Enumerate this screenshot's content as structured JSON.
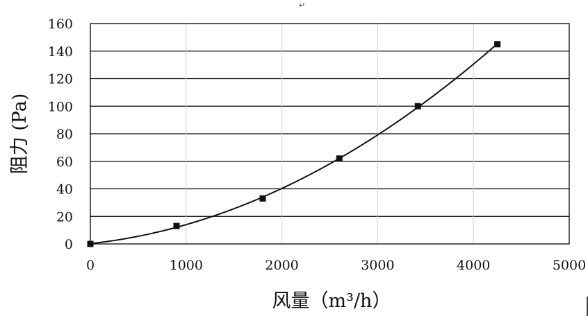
{
  "chart_data": {
    "type": "scatter",
    "xlabel": "风量（m³/h）",
    "ylabel": "阻力 (Pa)",
    "xlim": [
      0,
      5000
    ],
    "ylim": [
      0,
      160
    ],
    "xticks": [
      "0",
      "1000",
      "2000",
      "3000",
      "4000",
      "5000"
    ],
    "yticks": [
      "0",
      "20",
      "40",
      "60",
      "80",
      "100",
      "120",
      "140",
      "160"
    ],
    "grid": true,
    "legend": "none",
    "series": [
      {
        "x": [
          0,
          900,
          1800,
          2600,
          3420,
          4250
        ],
        "y": [
          0,
          13,
          33,
          62,
          100,
          145
        ],
        "marker": "square",
        "color": "#111111",
        "trendline": "quadratic"
      }
    ]
  },
  "top_mark": "↵"
}
